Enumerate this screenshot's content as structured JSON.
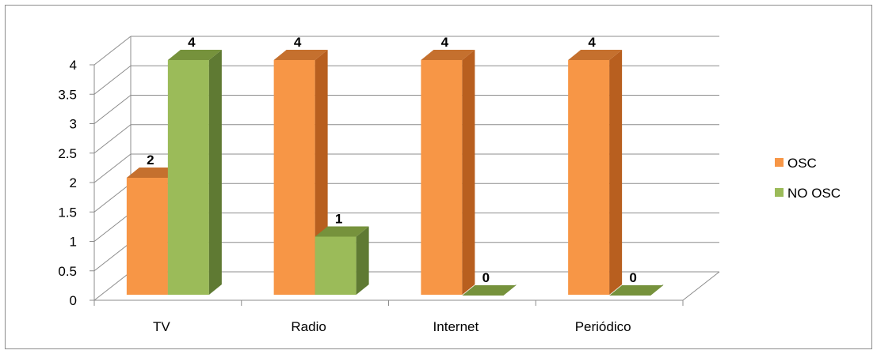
{
  "chart_data": {
    "type": "bar",
    "categories": [
      "TV",
      "Radio",
      "Internet",
      "Periódico"
    ],
    "series": [
      {
        "name": "OSC",
        "values": [
          2,
          4,
          4,
          4
        ],
        "color": "#F79646",
        "side": "#B85F1F",
        "top": "#C5702E"
      },
      {
        "name": "NO OSC",
        "values": [
          4,
          1,
          0,
          0
        ],
        "color": "#9BBB59",
        "side": "#5F7A33",
        "top": "#76923C"
      }
    ],
    "ylim": [
      0,
      4
    ],
    "yticks": [
      "0",
      "0.5",
      "1",
      "1.5",
      "2",
      "2.5",
      "3",
      "3.5",
      "4"
    ],
    "data_labels": [
      [
        "2",
        "4",
        "4",
        "4"
      ],
      [
        "4",
        "1",
        "0",
        "0"
      ]
    ],
    "grid": true,
    "legend_position": "right",
    "three_d": true
  }
}
